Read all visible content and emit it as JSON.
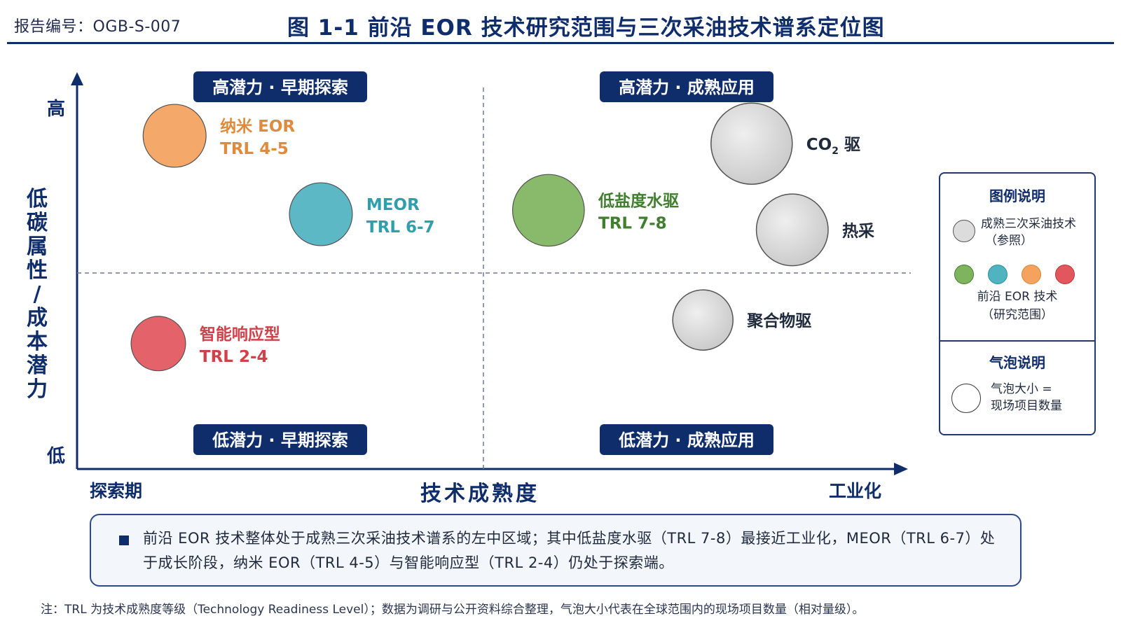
{
  "header": {
    "report_id": "报告编号：OGB-S-007",
    "title": "图 1-1  前沿 EOR 技术研究范围与三次采油技术谱系定位图"
  },
  "colors": {
    "navy": "#0f2d6b",
    "nano": "#f4a25e",
    "meor": "#4fb3c0",
    "smart": "#e2565e",
    "lowsal": "#7fb45e",
    "mature": "#d6d6d6"
  },
  "chart_data": {
    "type": "scatter",
    "xlabel": "技术成熟度",
    "ylabel": "低碳属性/成本潜力",
    "x_tick_labels": {
      "low": "探索期",
      "high": "工业化"
    },
    "y_tick_labels": {
      "low": "低",
      "high": "高"
    },
    "xlim": [
      0,
      1
    ],
    "ylim": [
      0,
      1
    ],
    "grid": false,
    "quadrant_dividers": {
      "x": 0.5,
      "y": 0.5
    },
    "quadrants": [
      {
        "label": "高潜力 · 早期探索",
        "position": "top-left"
      },
      {
        "label": "高潜力 · 成熟应用",
        "position": "top-right"
      },
      {
        "label": "低潜力 · 早期探索",
        "position": "bottom-left"
      },
      {
        "label": "低潜力 · 成熟应用",
        "position": "bottom-right"
      }
    ],
    "points": [
      {
        "id": "nano",
        "x": 0.12,
        "y": 0.85,
        "size": 0.6,
        "name": "纳米 EOR",
        "trl": "TRL 4-5",
        "group": "frontier",
        "color_key": "nano",
        "label_color": "#e08a3c"
      },
      {
        "id": "meor",
        "x": 0.3,
        "y": 0.65,
        "size": 0.6,
        "name": "MEOR",
        "trl": "TRL 6-7",
        "group": "frontier",
        "color_key": "meor",
        "label_color": "#2f9fae"
      },
      {
        "id": "smart",
        "x": 0.1,
        "y": 0.32,
        "size": 0.45,
        "name": "智能响应型",
        "trl": "TRL 2-4",
        "group": "frontier",
        "color_key": "smart",
        "label_color": "#d0424a"
      },
      {
        "id": "lowsal",
        "x": 0.58,
        "y": 0.66,
        "size": 0.78,
        "name": "低盐度水驱",
        "trl": "TRL 7-8",
        "group": "frontier",
        "color_key": "lowsal",
        "label_color": "#3f7f2e"
      },
      {
        "id": "co2",
        "x": 0.83,
        "y": 0.83,
        "size": 1.0,
        "name_main": "CO",
        "name_sub": "2",
        "name_tail": " 驱",
        "group": "mature",
        "color_key": "mature"
      },
      {
        "id": "thermal",
        "x": 0.88,
        "y": 0.61,
        "size": 0.78,
        "name": "热采",
        "group": "mature",
        "color_key": "mature"
      },
      {
        "id": "polymer",
        "x": 0.77,
        "y": 0.38,
        "size": 0.55,
        "name": "聚合物驱",
        "group": "mature",
        "color_key": "mature"
      }
    ]
  },
  "legend": {
    "title": "图例说明",
    "mature_label_1": "成熟三次采油技术",
    "mature_label_2": "（参照）",
    "frontier_label_1": "前沿 EOR 技术",
    "frontier_label_2": "（研究范围）",
    "bubble_title": "气泡说明",
    "bubble_label_1": "气泡大小 =",
    "bubble_label_2": "现场项目数量"
  },
  "summary": {
    "text": "前沿 EOR 技术整体处于成熟三次采油技术谱系的左中区域；其中低盐度水驱（TRL 7-8）最接近工业化，MEOR（TRL 6-7）处于成长阶段，纳米 EOR（TRL 4-5）与智能响应型（TRL 2-4）仍处于探索端。"
  },
  "footnote": "注：TRL 为技术成熟度等级（Technology Readiness Level）；数据为调研与公开资料综合整理，气泡大小代表在全球范围内的现场项目数量（相对量级）。"
}
